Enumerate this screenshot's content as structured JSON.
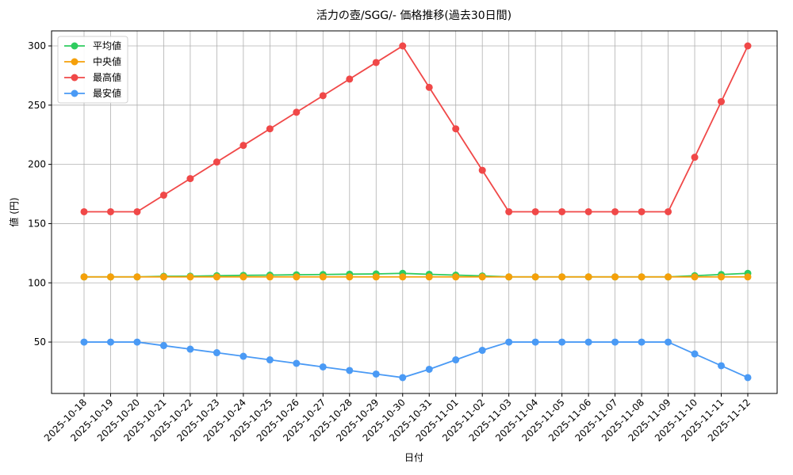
{
  "chart_data": {
    "type": "line",
    "title": "活力の壺/SGG/- 価格推移(過去30日間)",
    "x_label": "日付",
    "y_label": "値 (円)",
    "categories": [
      "2025-10-18",
      "2025-10-19",
      "2025-10-20",
      "2025-10-21",
      "2025-10-22",
      "2025-10-23",
      "2025-10-24",
      "2025-10-25",
      "2025-10-26",
      "2025-10-27",
      "2025-10-28",
      "2025-10-29",
      "2025-10-30",
      "2025-10-31",
      "2025-11-01",
      "2025-11-02",
      "2025-11-03",
      "2025-11-04",
      "2025-11-05",
      "2025-11-06",
      "2025-11-07",
      "2025-11-08",
      "2025-11-09",
      "2025-11-10",
      "2025-11-11",
      "2025-11-12"
    ],
    "series": [
      {
        "name": "平均値",
        "color": "#2ecc5f",
        "values": [
          105,
          105,
          105,
          105.5,
          105.6,
          106,
          106.3,
          106.5,
          106.8,
          107,
          107.3,
          107.5,
          108,
          107.2,
          106.5,
          105.8,
          105,
          105,
          105,
          105,
          105,
          105,
          105,
          106,
          107,
          108
        ]
      },
      {
        "name": "中央値",
        "color": "#f5a00a",
        "values": [
          105,
          105,
          105,
          105,
          105,
          105,
          105,
          105,
          105,
          105,
          105,
          105,
          105,
          105,
          105,
          105,
          105,
          105,
          105,
          105,
          105,
          105,
          105,
          105,
          105,
          105
        ]
      },
      {
        "name": "最高値",
        "color": "#f04848",
        "values": [
          160,
          160,
          160,
          174,
          188,
          202,
          216,
          230,
          244,
          258,
          272,
          286,
          300,
          265,
          230,
          195,
          160,
          160,
          160,
          160,
          160,
          160,
          160,
          206,
          253,
          300
        ]
      },
      {
        "name": "最安値",
        "color": "#4a9af5",
        "values": [
          50,
          50,
          50,
          47,
          44,
          41,
          38,
          35,
          32,
          29,
          26,
          23,
          20,
          27,
          35,
          43,
          50,
          50,
          50,
          50,
          50,
          50,
          50,
          40,
          30,
          20
        ]
      }
    ],
    "ylim": [
      6.6,
      312.7
    ],
    "yticks": [
      50,
      100,
      150,
      200,
      250,
      300
    ],
    "grid": true,
    "legend": "upper-left"
  }
}
